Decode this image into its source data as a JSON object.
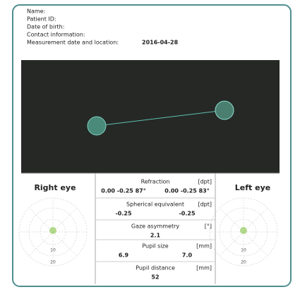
{
  "header": {
    "name": "Name:",
    "patient_id": "Patient ID:",
    "date_of_birth": "Date of birth:",
    "contact": "Contact information:",
    "measurement_label": "Measurement date and location:",
    "measurement_date": "2016-04-28"
  },
  "right_eye": {
    "title": "Right eye",
    "ring_labels": [
      "10",
      "20"
    ]
  },
  "left_eye": {
    "title": "Left eye",
    "ring_labels": [
      "10",
      "20"
    ]
  },
  "table": {
    "rows": [
      {
        "label": "Refraction",
        "unit": "[dpt]",
        "values": [
          "0.00 -0.25 87°",
          "0.00 -0.25 83°"
        ]
      },
      {
        "label": "Spherical equivalent",
        "unit": "[dpt]",
        "values": [
          "-0.25",
          "-0.25"
        ]
      },
      {
        "label": "Gaze asymmetry",
        "unit": "[°]",
        "values": [
          "2.1"
        ]
      },
      {
        "label": "Pupil size",
        "unit": "[mm]",
        "values": [
          "6.9",
          "7.0"
        ]
      },
      {
        "label": "Pupil distance",
        "unit": "[mm]",
        "values": [
          "52"
        ]
      }
    ]
  }
}
